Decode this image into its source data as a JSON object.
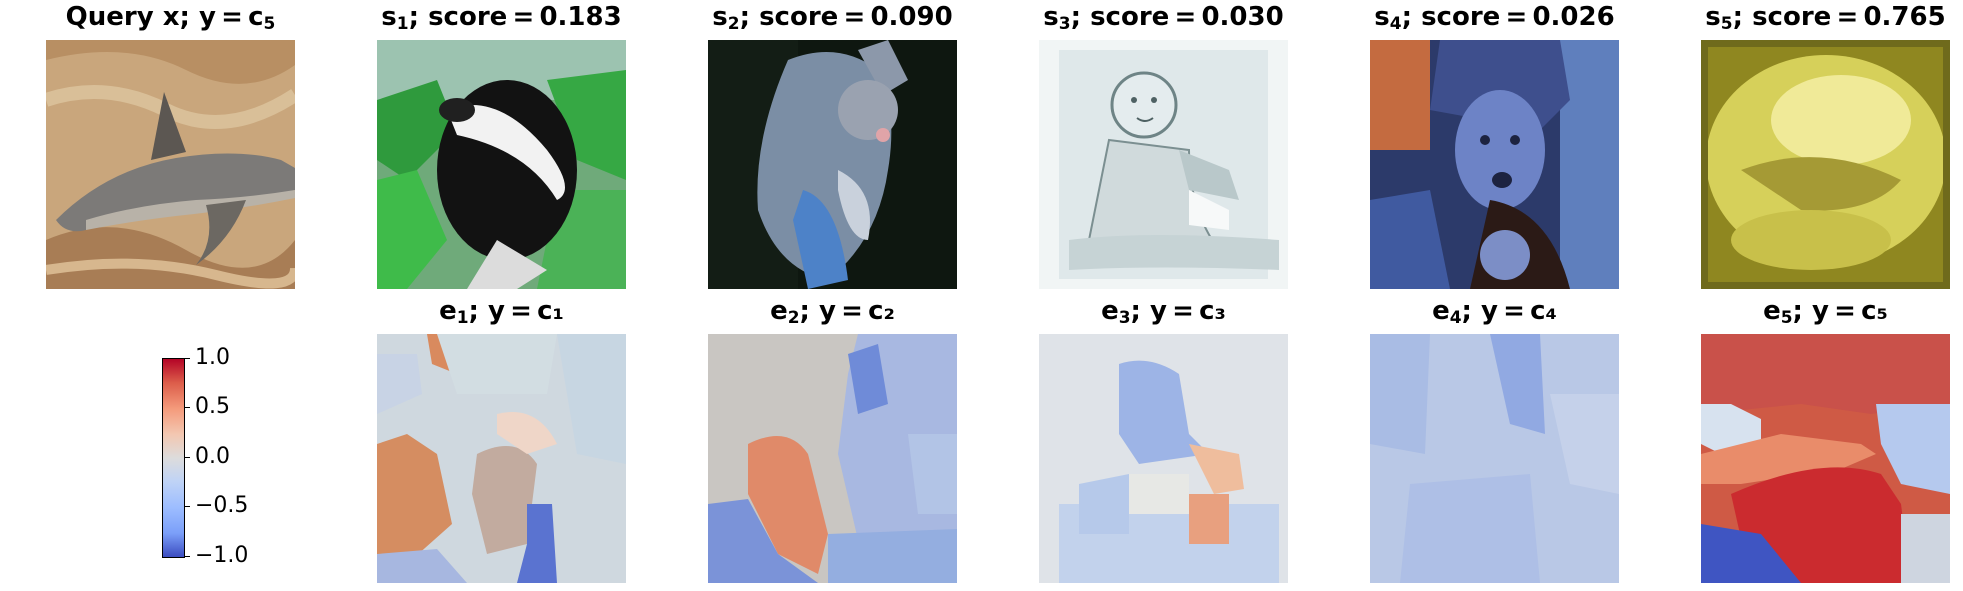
{
  "panels": [
    {
      "title_main": "Query x; y = c",
      "title_sub": "5",
      "title_rest": "",
      "image": "dolphin on sand background",
      "col": 0,
      "row": 0
    },
    {
      "title_main": "s",
      "title_sub": "1",
      "title_rest": "; score = 0.183",
      "image": "skunk in grass",
      "col": 1,
      "row": 0
    },
    {
      "title_main": "s",
      "title_sub": "2",
      "title_rest": "; score = 0.090",
      "image": "possum on dark background",
      "col": 2,
      "row": 0
    },
    {
      "title_main": "s",
      "title_sub": "3",
      "title_rest": "; score = 0.030",
      "image": "baby sketch",
      "col": 3,
      "row": 0
    },
    {
      "title_main": "s",
      "title_sub": "4",
      "title_rest": "; score = 0.026",
      "image": "person in blue",
      "col": 4,
      "row": 0
    },
    {
      "title_main": "s",
      "title_sub": "5",
      "title_rest": "; score = 0.765",
      "image": "yellow blurry shape",
      "col": 5,
      "row": 0
    },
    {
      "title_main": "e",
      "title_sub": "1",
      "title_rest": "; y = c₁",
      "image": "explanation heatmap 1",
      "col": 1,
      "row": 1
    },
    {
      "title_main": "e",
      "title_sub": "2",
      "title_rest": "; y = c₂",
      "image": "explanation heatmap 2",
      "col": 2,
      "row": 1
    },
    {
      "title_main": "e",
      "title_sub": "3",
      "title_rest": "; y = c₃",
      "image": "explanation heatmap 3",
      "col": 3,
      "row": 1
    },
    {
      "title_main": "e",
      "title_sub": "4",
      "title_rest": "; y = c₄",
      "image": "explanation heatmap 4",
      "col": 4,
      "row": 1
    },
    {
      "title_main": "e",
      "title_sub": "5",
      "title_rest": "; y = c₅",
      "image": "explanation heatmap 5",
      "col": 5,
      "row": 1
    }
  ],
  "colorbar": {
    "colormap": "coolwarm",
    "range": [
      -1.0,
      1.0
    ],
    "ticks": [
      "1.0",
      "0.5",
      "0.0",
      "−0.5",
      "−1.0"
    ]
  }
}
